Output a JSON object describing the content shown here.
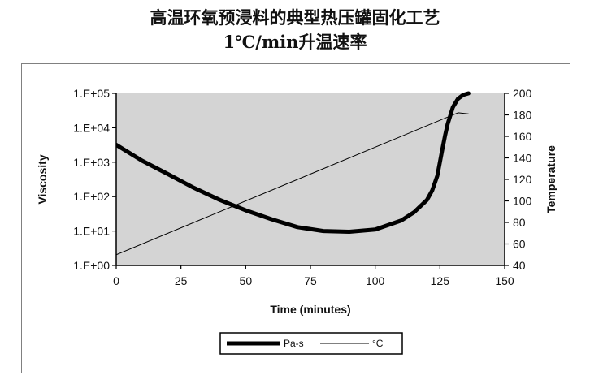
{
  "title_line1": "高温环氧预浸料的典型热压罐固化工艺",
  "title_line2": "1℃/min升温速率",
  "chart_data": {
    "type": "line",
    "xlabel": "Time (minutes)",
    "ylabel_left": "Viscosity",
    "ylabel_right": "Temperature",
    "xlim": [
      0,
      150
    ],
    "x_ticks": [
      "0",
      "25",
      "50",
      "75",
      "100",
      "125",
      "150"
    ],
    "ylim_left_log10": [
      0,
      5
    ],
    "y_left_ticks": [
      "1.E+00",
      "1.E+01",
      "1.E+02",
      "1.E+03",
      "1.E+04",
      "1.E+05"
    ],
    "ylim_right": [
      40,
      200
    ],
    "y_right_ticks": [
      "40",
      "60",
      "80",
      "100",
      "120",
      "140",
      "160",
      "180",
      "200"
    ],
    "legend_position": "bottom",
    "plot_background": "#d4d4d4",
    "series": [
      {
        "name": "Pa-s",
        "axis": "left",
        "scale": "log",
        "x": [
          0,
          10,
          20,
          30,
          40,
          50,
          60,
          70,
          80,
          90,
          100,
          110,
          115,
          120,
          122,
          124,
          125,
          126,
          127,
          128,
          130,
          132,
          134,
          136
        ],
        "y": [
          3200,
          1100,
          450,
          180,
          80,
          40,
          22,
          13,
          10,
          9.5,
          11,
          20,
          35,
          80,
          150,
          400,
          1000,
          2500,
          6000,
          13000,
          40000,
          70000,
          90000,
          100000
        ]
      },
      {
        "name": "°C",
        "axis": "right",
        "scale": "linear",
        "x": [
          0,
          132,
          136
        ],
        "y": [
          50,
          182,
          181
        ]
      }
    ]
  }
}
